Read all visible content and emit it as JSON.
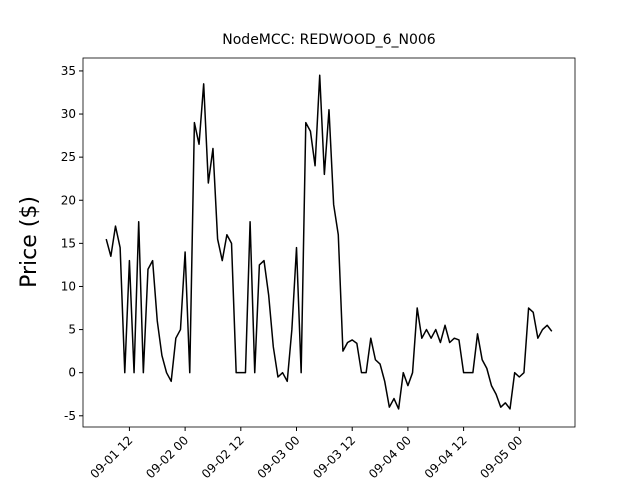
{
  "chart_data": {
    "type": "line",
    "title": "NodeMCC: REDWOOD_6_N006",
    "y_label": "Price ($)",
    "x": [
      "09-01 07",
      "09-01 08",
      "09-01 09",
      "09-01 10",
      "09-01 11",
      "09-01 12",
      "09-01 13",
      "09-01 14",
      "09-01 15",
      "09-01 16",
      "09-01 17",
      "09-01 18",
      "09-01 19",
      "09-01 20",
      "09-01 21",
      "09-01 22",
      "09-01 23",
      "09-02 00",
      "09-02 01",
      "09-02 02",
      "09-02 03",
      "09-02 04",
      "09-02 05",
      "09-02 06",
      "09-02 07",
      "09-02 08",
      "09-02 09",
      "09-02 10",
      "09-02 11",
      "09-02 12",
      "09-02 13",
      "09-02 14",
      "09-02 15",
      "09-02 16",
      "09-02 17",
      "09-02 18",
      "09-02 19",
      "09-02 20",
      "09-02 21",
      "09-02 22",
      "09-02 23",
      "09-03 00",
      "09-03 01",
      "09-03 02",
      "09-03 03",
      "09-03 04",
      "09-03 05",
      "09-03 06",
      "09-03 07",
      "09-03 08",
      "09-03 09",
      "09-03 10",
      "09-03 11",
      "09-03 12",
      "09-03 13",
      "09-03 14",
      "09-03 15",
      "09-03 16",
      "09-03 17",
      "09-03 18",
      "09-03 19",
      "09-03 20",
      "09-03 21",
      "09-03 22",
      "09-03 23",
      "09-04 00",
      "09-04 01",
      "09-04 02",
      "09-04 03",
      "09-04 04",
      "09-04 05",
      "09-04 06",
      "09-04 07",
      "09-04 08",
      "09-04 09",
      "09-04 10",
      "09-04 11",
      "09-04 12",
      "09-04 13",
      "09-04 14",
      "09-04 15",
      "09-04 16",
      "09-04 17",
      "09-04 18",
      "09-04 19",
      "09-04 20",
      "09-04 21",
      "09-04 22",
      "09-04 23",
      "09-05 00",
      "09-05 01",
      "09-05 02",
      "09-05 03",
      "09-05 04",
      "09-05 05",
      "09-05 06",
      "09-05 07"
    ],
    "series": [
      {
        "color": "#000000",
        "values": [
          15.5,
          13.5,
          17,
          14.5,
          0,
          13,
          0,
          17.5,
          0,
          12,
          13,
          6,
          2,
          0,
          -1,
          4,
          5,
          14,
          0,
          29,
          26.5,
          33.5,
          22,
          26,
          15.5,
          13,
          16,
          15,
          0,
          0,
          0,
          17.5,
          0,
          12.5,
          13,
          9,
          3,
          -0.5,
          0,
          -1,
          5,
          14.5,
          0,
          29,
          28,
          24,
          34.5,
          23,
          30.5,
          19.5,
          16,
          2.5,
          3.5,
          3.8,
          3.4,
          0,
          0,
          4,
          1.5,
          1,
          -1,
          -4,
          -3,
          -4.2,
          0,
          -1.5,
          0,
          7.5,
          4,
          5,
          4,
          5,
          3.5,
          5.5,
          3.5,
          4,
          3.8,
          0,
          0,
          0,
          4.5,
          1.5,
          0.5,
          -1.5,
          -2.5,
          -4,
          -3.5,
          -4.2,
          0,
          -0.5,
          0,
          7.5,
          7,
          4,
          5,
          5.5,
          4.8
        ]
      }
    ],
    "xlim": [
      "09-01 02",
      "09-05 12"
    ],
    "xticks": [
      "09-01 12",
      "09-02 00",
      "09-02 12",
      "09-03 00",
      "09-03 12",
      "09-04 00",
      "09-04 12",
      "09-05 00"
    ],
    "ylim": [
      -6.3,
      36.5
    ],
    "yticks": [
      -5,
      0,
      5,
      10,
      15,
      20,
      25,
      30,
      35
    ]
  }
}
